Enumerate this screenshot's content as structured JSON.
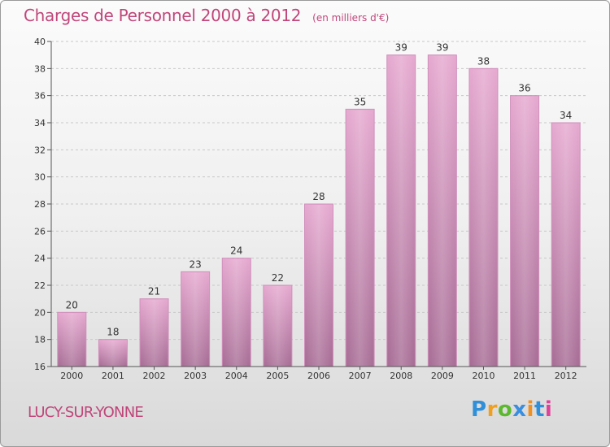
{
  "header": {
    "title": "Charges de Personnel 2000 à 2012",
    "unit": "(en milliers d'€)"
  },
  "footer": {
    "city": "LUCY-SUR-YONNE",
    "logo": [
      "P",
      "r",
      "o",
      "x",
      "i",
      "t",
      "i"
    ],
    "logo_colors": [
      "#2f8fd8",
      "#f0a020",
      "#5cb82e",
      "#3a8ee0",
      "#f09020",
      "#2f8fd8",
      "#e0409a"
    ]
  },
  "colors": {
    "bar_top": "#e6a9d0",
    "bar_bottom": "#a86e96",
    "bar_shade": "#d090bc",
    "grid": "#c8c8c8",
    "title": "#c0467a"
  },
  "chart_data": {
    "type": "bar",
    "categories": [
      "2000",
      "2001",
      "2002",
      "2003",
      "2004",
      "2005",
      "2006",
      "2007",
      "2008",
      "2009",
      "2010",
      "2011",
      "2012"
    ],
    "values": [
      20,
      18,
      21,
      23,
      24,
      22,
      28,
      35,
      39,
      39,
      38,
      36,
      34
    ],
    "ylim": [
      16,
      40
    ],
    "yticks": [
      16,
      18,
      20,
      22,
      24,
      26,
      28,
      30,
      32,
      34,
      36,
      38,
      40
    ],
    "grid": true,
    "data_labels": true
  }
}
